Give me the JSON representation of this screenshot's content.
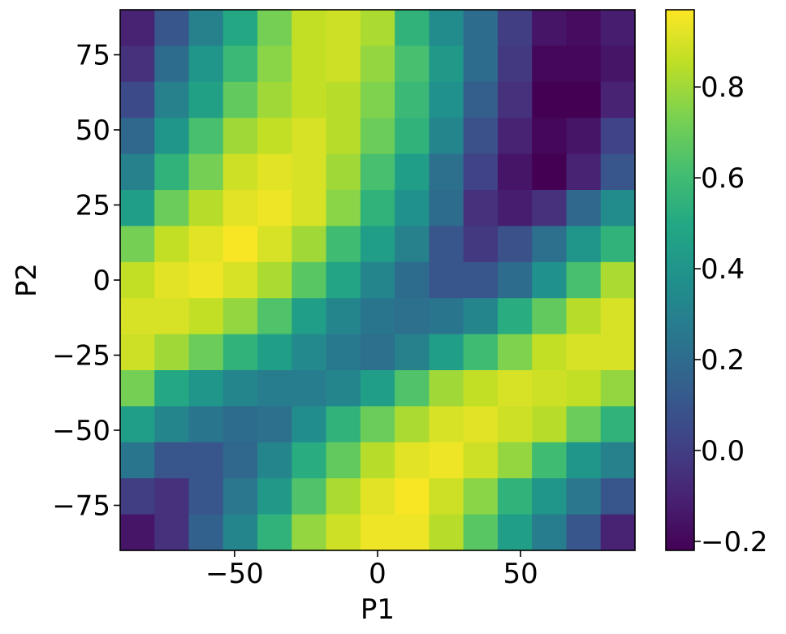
{
  "chart_data": {
    "type": "heatmap",
    "title": "",
    "xlabel": "P1",
    "ylabel": "P2",
    "xlim": [
      -90,
      90
    ],
    "ylim": [
      -90,
      90
    ],
    "xticks": [
      -50,
      0,
      50
    ],
    "yticks": [
      -75,
      -50,
      -25,
      0,
      25,
      50,
      75
    ],
    "xtick_labels": [
      "−50",
      "0",
      "50"
    ],
    "ytick_labels": [
      "−75",
      "−50",
      "−25",
      "0",
      "25",
      "50",
      "75"
    ],
    "x_centers": [
      -84,
      -72,
      -60,
      -48,
      -36,
      -24,
      -12,
      0,
      12,
      24,
      36,
      48,
      60,
      72,
      84
    ],
    "y_centers": [
      84,
      72,
      60,
      48,
      36,
      24,
      12,
      0,
      -12,
      -24,
      -36,
      -48,
      -60,
      -72,
      -84
    ],
    "cell_size": 12,
    "values": [
      [
        -0.1,
        0.1,
        0.3,
        0.5,
        0.72,
        0.86,
        0.88,
        0.82,
        0.55,
        0.35,
        0.2,
        0.0,
        -0.15,
        -0.18,
        -0.12
      ],
      [
        -0.05,
        0.2,
        0.4,
        0.58,
        0.76,
        0.86,
        0.88,
        0.78,
        0.62,
        0.42,
        0.2,
        -0.02,
        -0.2,
        -0.2,
        -0.15
      ],
      [
        0.05,
        0.3,
        0.46,
        0.68,
        0.8,
        0.86,
        0.84,
        0.74,
        0.58,
        0.38,
        0.14,
        -0.05,
        -0.24,
        -0.22,
        -0.1
      ],
      [
        0.18,
        0.4,
        0.62,
        0.8,
        0.86,
        0.9,
        0.84,
        0.7,
        0.55,
        0.32,
        0.08,
        -0.1,
        -0.2,
        -0.15,
        0.02
      ],
      [
        0.3,
        0.55,
        0.72,
        0.88,
        0.92,
        0.9,
        0.8,
        0.62,
        0.45,
        0.22,
        0.02,
        -0.15,
        -0.22,
        -0.1,
        0.1
      ],
      [
        0.45,
        0.7,
        0.84,
        0.92,
        0.94,
        0.9,
        0.76,
        0.55,
        0.38,
        0.2,
        -0.05,
        -0.12,
        -0.05,
        0.18,
        0.35
      ],
      [
        0.72,
        0.86,
        0.92,
        0.96,
        0.9,
        0.8,
        0.6,
        0.45,
        0.3,
        0.1,
        -0.02,
        0.08,
        0.22,
        0.4,
        0.55
      ],
      [
        0.86,
        0.92,
        0.94,
        0.9,
        0.82,
        0.66,
        0.48,
        0.32,
        0.2,
        0.1,
        0.1,
        0.2,
        0.38,
        0.62,
        0.82
      ],
      [
        0.9,
        0.9,
        0.86,
        0.78,
        0.64,
        0.45,
        0.32,
        0.24,
        0.22,
        0.24,
        0.32,
        0.52,
        0.68,
        0.84,
        0.9
      ],
      [
        0.88,
        0.8,
        0.7,
        0.55,
        0.45,
        0.34,
        0.26,
        0.22,
        0.3,
        0.45,
        0.6,
        0.74,
        0.86,
        0.9,
        0.9
      ],
      [
        0.72,
        0.5,
        0.4,
        0.32,
        0.28,
        0.28,
        0.32,
        0.45,
        0.64,
        0.8,
        0.86,
        0.9,
        0.88,
        0.86,
        0.78
      ],
      [
        0.45,
        0.32,
        0.24,
        0.2,
        0.22,
        0.36,
        0.55,
        0.7,
        0.82,
        0.9,
        0.92,
        0.88,
        0.84,
        0.7,
        0.55
      ],
      [
        0.24,
        0.1,
        0.1,
        0.18,
        0.32,
        0.52,
        0.68,
        0.84,
        0.92,
        0.94,
        0.88,
        0.78,
        0.6,
        0.4,
        0.3
      ],
      [
        0.0,
        -0.05,
        0.1,
        0.25,
        0.42,
        0.64,
        0.82,
        0.92,
        0.96,
        0.88,
        0.76,
        0.55,
        0.4,
        0.25,
        0.1
      ],
      [
        -0.15,
        -0.05,
        0.15,
        0.32,
        0.55,
        0.78,
        0.88,
        0.94,
        0.94,
        0.84,
        0.66,
        0.45,
        0.28,
        0.1,
        -0.1
      ]
    ],
    "colormap": "viridis",
    "colorbar": {
      "vmin": -0.22,
      "vmax": 0.97,
      "ticks": [
        -0.2,
        0.0,
        0.2,
        0.4,
        0.6,
        0.8
      ],
      "tick_labels": [
        "−0.2",
        "0.0",
        "0.2",
        "0.4",
        "0.6",
        "0.8"
      ]
    },
    "grid": false,
    "legend": "none"
  }
}
